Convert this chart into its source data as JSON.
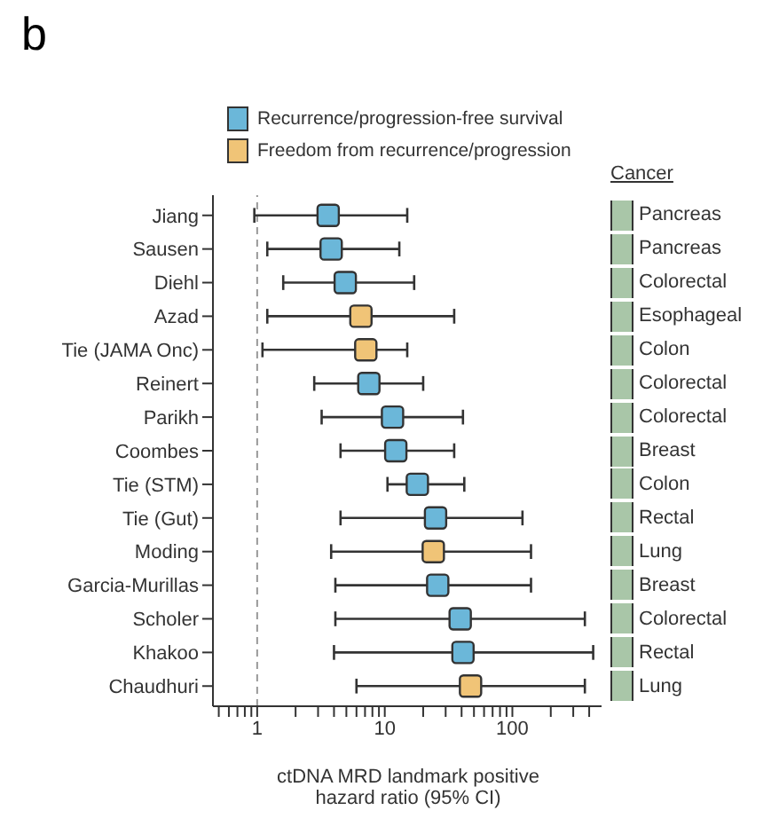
{
  "chart_data": {
    "type": "scatter",
    "title": "b",
    "orientation": "horizontal",
    "marker": "square",
    "log": "x",
    "legend": "top",
    "grid": false,
    "categories": [
      "Jiang",
      "Sausen",
      "Diehl",
      "Azad",
      "Tie (JAMA Onc)",
      "Reinert",
      "Parikh",
      "Coombes",
      "Tie (STM)",
      "Tie (Gut)",
      "Moding",
      "Garcia-Murillas",
      "Scholer",
      "Khakoo",
      "Chaudhuri"
    ],
    "series": [
      {
        "name": "Recurrence/progression-free survival",
        "color": "#6bb7d9",
        "values": [
          3.6,
          3.8,
          4.9,
          null,
          null,
          7.5,
          11.5,
          12.2,
          18,
          25,
          null,
          26,
          39,
          41,
          null
        ],
        "errors": [
          [
            0.95,
            15
          ],
          [
            1.2,
            13
          ],
          [
            1.6,
            17
          ],
          null,
          null,
          [
            2.8,
            20
          ],
          [
            3.2,
            41
          ],
          [
            4.5,
            35
          ],
          [
            10.5,
            42
          ],
          [
            4.5,
            120
          ],
          null,
          [
            4.1,
            140
          ],
          [
            4.1,
            370
          ],
          [
            4,
            430
          ],
          null
        ]
      },
      {
        "name": "Freedom from recurrence/progression",
        "color": "#f0c477",
        "values": [
          null,
          null,
          null,
          6.5,
          7.1,
          null,
          null,
          null,
          null,
          null,
          24,
          null,
          null,
          null,
          47
        ],
        "errors": [
          null,
          null,
          null,
          [
            1.2,
            35
          ],
          [
            1.1,
            15
          ],
          null,
          null,
          null,
          null,
          null,
          [
            3.8,
            140
          ],
          null,
          null,
          null,
          [
            6,
            370
          ]
        ]
      }
    ],
    "xlim": [
      0.45,
      500
    ],
    "xticks": [
      {
        "value": 0.5,
        "label": null
      },
      {
        "value": 0.6,
        "label": null
      },
      {
        "value": 0.7,
        "label": null
      },
      {
        "value": 0.8,
        "label": null
      },
      {
        "value": 0.9,
        "label": null
      },
      1,
      {
        "value": 2,
        "label": null
      },
      {
        "value": 3,
        "label": null
      },
      {
        "value": 4,
        "label": null
      },
      {
        "value": 5,
        "label": null
      },
      {
        "value": 6,
        "label": null
      },
      {
        "value": 7,
        "label": null
      },
      {
        "value": 8,
        "label": null
      },
      {
        "value": 9,
        "label": null
      },
      10,
      {
        "value": 20,
        "label": null
      },
      {
        "value": 30,
        "label": null
      },
      {
        "value": 40,
        "label": null
      },
      {
        "value": 50,
        "label": null
      },
      {
        "value": 60,
        "label": null
      },
      {
        "value": 70,
        "label": null
      },
      {
        "value": 80,
        "label": null
      },
      {
        "value": 90,
        "label": null
      },
      100,
      {
        "value": 200,
        "label": null
      },
      {
        "value": 300,
        "label": null
      },
      {
        "value": 400,
        "label": null
      }
    ],
    "xlabel": "ctDNA MRD landmark positive\nhazard ratio (95% CI)",
    "ref_lines": [
      {
        "axis": "x",
        "value": 1,
        "line_style": "dashed",
        "color": "#999999"
      }
    ],
    "legend_title": "Cancer",
    "annotations": [
      "Pancreas",
      "Pancreas",
      "Colorectal",
      "Esophageal",
      "Colon",
      "Colorectal",
      "Colorectal",
      "Breast",
      "Colon",
      "Rectal",
      "Lung",
      "Breast",
      "Colorectal",
      "Rectal",
      "Lung"
    ]
  }
}
